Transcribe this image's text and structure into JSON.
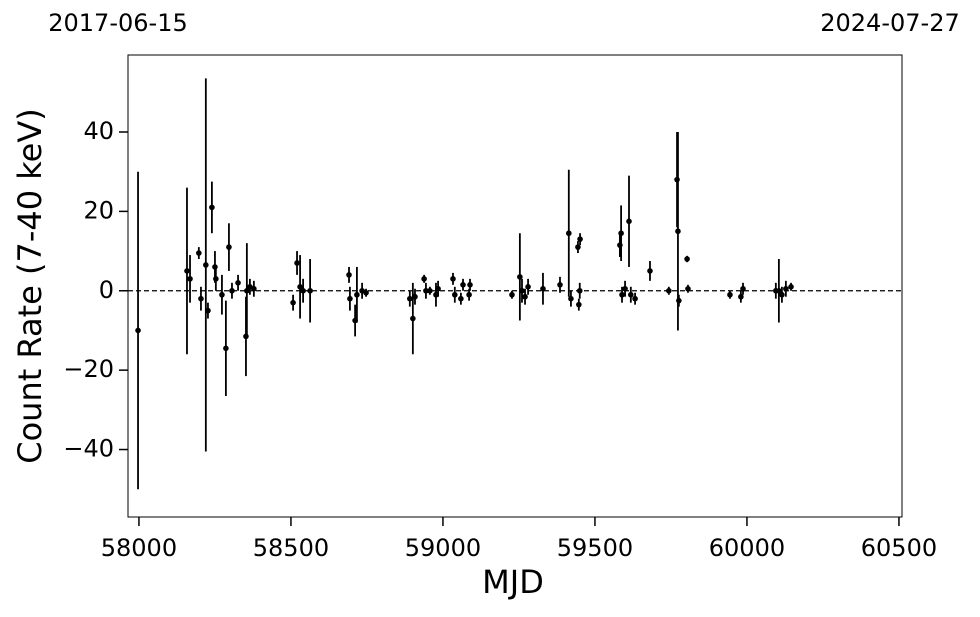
{
  "chart_data": {
    "type": "scatter",
    "xlabel": "MJD",
    "ylabel": "Count Rate (7-40 keV)",
    "annotations": [
      "2017-06-15",
      "2024-07-27"
    ],
    "hline": 0,
    "xlim": [
      57964,
      60510
    ],
    "ylim": [
      -57,
      59.4
    ],
    "xticks": [
      58000,
      58500,
      59000,
      59500,
      60000,
      60500
    ],
    "yticks": [
      {
        "value": -40,
        "label": "−40"
      },
      {
        "value": -20,
        "label": "−20"
      },
      0,
      20,
      40
    ],
    "grid": false,
    "series": [
      {
        "color": "#000000",
        "x": [
          57997,
          58158,
          58168,
          58197,
          58204,
          58220,
          58227,
          58240,
          58250,
          58253,
          58273,
          58286,
          58296,
          58306,
          58326,
          58352,
          58355,
          58365,
          58378,
          58507,
          58520,
          58530,
          58540,
          58563,
          58691,
          58694,
          58711,
          58717,
          58734,
          58747,
          58891,
          58901,
          58908,
          58938,
          58944,
          58957,
          58977,
          58984,
          59033,
          59039,
          59059,
          59066,
          59086,
          59089,
          59227,
          59253,
          59260,
          59270,
          59280,
          59329,
          59385,
          59414,
          59421,
          59444,
          59451,
          59447,
          59450,
          59582,
          59586,
          59589,
          59599,
          59612,
          59618,
          59632,
          59681,
          59743,
          59770,
          59773,
          59776,
          59803,
          59806,
          59944,
          59980,
          59987,
          60095,
          60105,
          60115,
          60128,
          60145
        ],
        "values": [
          -10,
          5,
          3,
          9.5,
          -2,
          6.5,
          -5,
          21,
          6,
          3,
          -1,
          -14.5,
          11,
          0,
          2,
          -11.5,
          0,
          1,
          0.5,
          -3,
          7,
          1,
          0,
          0,
          4,
          -2,
          -7.5,
          -1,
          0,
          -0.5,
          -2,
          -7,
          -1.5,
          3,
          0,
          0,
          -1,
          0.5,
          3,
          -1,
          -2,
          1.5,
          -1,
          1.5,
          -1,
          3.5,
          0,
          -1.5,
          1,
          0.5,
          1.5,
          14.5,
          -2,
          11,
          13,
          -3.5,
          0,
          11.5,
          14.5,
          -1,
          0.5,
          17.5,
          -1,
          -2,
          5,
          0,
          28,
          15,
          -2.5,
          8,
          0.5,
          -1,
          -1.5,
          0.5,
          0,
          0,
          -1,
          0.5,
          1
        ],
        "errors": [
          40,
          21,
          6,
          1.5,
          3,
          47,
          2,
          6.5,
          4,
          3,
          5,
          12,
          6,
          2,
          2,
          10,
          12,
          2,
          2,
          2,
          3,
          8,
          3,
          8,
          2,
          3,
          4,
          7,
          2,
          1,
          2,
          9,
          2,
          1,
          2,
          1,
          3,
          2,
          1.5,
          2,
          1.5,
          1.5,
          1.5,
          1.5,
          1,
          11,
          3,
          2,
          2,
          4,
          2,
          16,
          2,
          1.5,
          1.5,
          1.5,
          2,
          3,
          7,
          2,
          2,
          11.5,
          2,
          1.5,
          2.5,
          1,
          12,
          25,
          1.5,
          0.8,
          1,
          1,
          1.5,
          1.5,
          2,
          8,
          2,
          2,
          1
        ]
      }
    ]
  }
}
